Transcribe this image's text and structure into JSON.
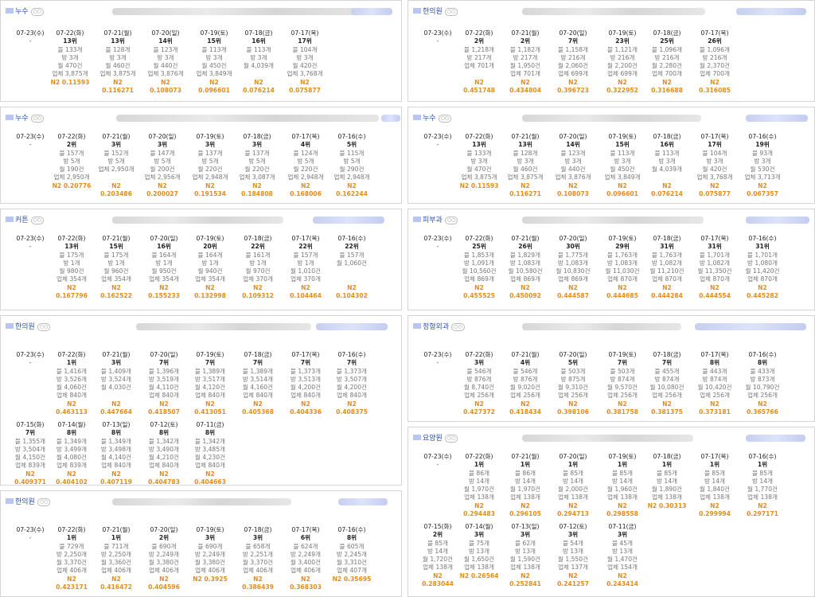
{
  "cards": [
    {
      "keyword": "누수",
      "cols": [
        {
          "date": "07-23(수)",
          "rank": "-"
        },
        {
          "date": "07-22(화)",
          "rank": "13위",
          "blog": "블 133개",
          "bang": "방 3개",
          "month": "월 470건",
          "biz": "업체 3,875개",
          "n2": "N2 0.11593"
        },
        {
          "date": "07-21(월)",
          "rank": "13위",
          "blog": "블 128개",
          "bang": "방 3개",
          "month": "월 460건",
          "biz": "업체 3,875개",
          "n2": "N2 0.116271"
        },
        {
          "date": "07-20(일)",
          "rank": "14위",
          "blog": "블 123개",
          "bang": "방 3개",
          "month": "월 440건",
          "biz": "업체 3,876개",
          "n2": "N2 0.108073"
        },
        {
          "date": "07-19(토)",
          "rank": "15위",
          "blog": "블 113개",
          "bang": "방 3개",
          "month": "월 450건",
          "biz": "업체 3,849개",
          "n2": "N2 0.096601"
        },
        {
          "date": "07-18(금)",
          "rank": "16위",
          "blog": "블 113개",
          "bang": "방 3개",
          "month": "월 4,039개",
          "biz": "",
          "n2": "N2 0.076214"
        },
        {
          "date": "07-17(목)",
          "rank": "17위",
          "blog": "블 104개",
          "bang": "방 3개",
          "month": "월 420건",
          "biz": "업체 3,768개",
          "n2": "N2 0.075877"
        }
      ]
    },
    {
      "keyword": "한의원",
      "cols": [
        {
          "date": "07-23(수)",
          "rank": "-"
        },
        {
          "date": "07-22(화)",
          "rank": "2위",
          "blog": "블 1,218개",
          "bang": "방 217개",
          "month": "업체 701개",
          "biz": "",
          "n2": "N2 0.451748"
        },
        {
          "date": "07-21(월)",
          "rank": "2위",
          "blog": "블 1,182개",
          "bang": "방 217개",
          "month": "월 1,950건",
          "biz": "업체 701개",
          "n2": "N2 0.434804"
        },
        {
          "date": "07-20(일)",
          "rank": "7위",
          "blog": "블 1,158개",
          "bang": "방 216개",
          "month": "월 2,060건",
          "biz": "업체 699개",
          "n2": "N2 0.396723"
        },
        {
          "date": "07-19(토)",
          "rank": "23위",
          "blog": "블 1,121개",
          "bang": "방 216개",
          "month": "월 2,200건",
          "biz": "업체 699개",
          "n2": "N2 0.322952"
        },
        {
          "date": "07-18(금)",
          "rank": "25위",
          "blog": "블 1,096개",
          "bang": "방 216개",
          "month": "월 2,280건",
          "biz": "업체 700개",
          "n2": "N2 0.316688"
        },
        {
          "date": "07-17(목)",
          "rank": "26위",
          "blog": "블 1,096개",
          "bang": "방 216개",
          "month": "월 2,370건",
          "biz": "업체 700개",
          "n2": "N2 0.316085"
        }
      ]
    },
    {
      "keyword": "누수",
      "cols": [
        {
          "date": "07-23(수)",
          "rank": "-"
        },
        {
          "date": "07-22(화)",
          "rank": "2위",
          "blog": "블 157개",
          "bang": "방 5개",
          "month": "월 190건",
          "biz": "업체 2,950개",
          "n2": "N2 0.20776"
        },
        {
          "date": "07-21(월)",
          "rank": "3위",
          "blog": "블 152개",
          "bang": "방 5개",
          "month": "업체 2,950개",
          "biz": "",
          "n2": "N2 0.203486"
        },
        {
          "date": "07-20(일)",
          "rank": "3위",
          "blog": "블 147개",
          "bang": "방 5개",
          "month": "월 200건",
          "biz": "업체 2,956개",
          "n2": "N2 0.200027"
        },
        {
          "date": "07-19(토)",
          "rank": "3위",
          "blog": "블 137개",
          "bang": "방 5개",
          "month": "월 220건",
          "biz": "업체 2,948개",
          "n2": "N2 0.191534"
        },
        {
          "date": "07-18(금)",
          "rank": "3위",
          "blog": "블 137개",
          "bang": "방 5개",
          "month": "월 220건",
          "biz": "업체 3,087개",
          "n2": "N2 0.184808"
        },
        {
          "date": "07-17(목)",
          "rank": "4위",
          "blog": "블 124개",
          "bang": "방 5개",
          "month": "월 220건",
          "biz": "업체 2,948개",
          "n2": "N2 0.168006"
        },
        {
          "date": "07-16(수)",
          "rank": "5위",
          "blog": "블 115개",
          "bang": "방 5개",
          "month": "월 290건",
          "biz": "업체 2,948개",
          "n2": "N2 0.162244"
        }
      ]
    },
    {
      "keyword": "누수",
      "cols": [
        {
          "date": "07-23(수)",
          "rank": "-"
        },
        {
          "date": "07-22(화)",
          "rank": "13위",
          "blog": "블 133개",
          "bang": "방 3개",
          "month": "월 470건",
          "biz": "업체 3,875개",
          "n2": "N2 0.11593"
        },
        {
          "date": "07-21(월)",
          "rank": "13위",
          "blog": "블 128개",
          "bang": "방 3개",
          "month": "월 460건",
          "biz": "업체 3,875개",
          "n2": "N2 0.116271"
        },
        {
          "date": "07-20(일)",
          "rank": "14위",
          "blog": "블 123개",
          "bang": "방 3개",
          "month": "월 440건",
          "biz": "업체 3,876개",
          "n2": "N2 0.108073"
        },
        {
          "date": "07-19(토)",
          "rank": "15위",
          "blog": "블 113개",
          "bang": "방 3개",
          "month": "월 450건",
          "biz": "업체 3,849개",
          "n2": "N2 0.096601"
        },
        {
          "date": "07-18(금)",
          "rank": "16위",
          "blog": "블 113개",
          "bang": "방 3개",
          "month": "월 4,039개",
          "biz": "",
          "n2": "N2 0.076214"
        },
        {
          "date": "07-17(목)",
          "rank": "17위",
          "blog": "블 104개",
          "bang": "방 3개",
          "month": "월 420건",
          "biz": "업체 3,768개",
          "n2": "N2 0.075877"
        },
        {
          "date": "07-16(수)",
          "rank": "19위",
          "blog": "블 93개",
          "bang": "방 3개",
          "month": "월 530건",
          "biz": "업체 3,713개",
          "n2": "N2 0.067357"
        }
      ]
    },
    {
      "keyword": "커튼",
      "cols": [
        {
          "date": "07-23(수)",
          "rank": "-"
        },
        {
          "date": "07-22(화)",
          "rank": "13위",
          "blog": "블 175개",
          "bang": "방 1개",
          "month": "월 980건",
          "biz": "업체 354개",
          "n2": "N2 0.167796"
        },
        {
          "date": "07-21(월)",
          "rank": "15위",
          "blog": "블 175개",
          "bang": "방 1개",
          "month": "월 960건",
          "biz": "업체 354개",
          "n2": "N2 0.162522"
        },
        {
          "date": "07-20(일)",
          "rank": "16위",
          "blog": "블 164개",
          "bang": "방 1개",
          "month": "월 950건",
          "biz": "업체 354개",
          "n2": "N2 0.155233"
        },
        {
          "date": "07-19(토)",
          "rank": "20위",
          "blog": "블 164개",
          "bang": "방 1개",
          "month": "월 940건",
          "biz": "업체 354개",
          "n2": "N2 0.132998"
        },
        {
          "date": "07-18(금)",
          "rank": "22위",
          "blog": "블 161개",
          "bang": "방 1개",
          "month": "월 970건",
          "biz": "업체 370개",
          "n2": "N2 0.109312"
        },
        {
          "date": "07-17(목)",
          "rank": "22위",
          "blog": "블 157개",
          "bang": "방 1개",
          "month": "월 1,010건",
          "biz": "업체 370개",
          "n2": "N2 0.104464"
        },
        {
          "date": "07-16(수)",
          "rank": "22위",
          "blog": "블 157개",
          "bang": "월 1,060건",
          "month": "",
          "biz": "",
          "n2": "N2 0.104302"
        }
      ]
    },
    {
      "keyword": "피부과",
      "cols": [
        {
          "date": "07-23(수)",
          "rank": "-"
        },
        {
          "date": "07-22(화)",
          "rank": "25위",
          "blog": "블 1,853개",
          "bang": "방 1,091개",
          "month": "월 10,560건",
          "biz": "업체 869개",
          "n2": "N2 0.455525"
        },
        {
          "date": "07-21(월)",
          "rank": "26위",
          "blog": "블 1,829개",
          "bang": "방 1,083개",
          "month": "월 10,580건",
          "biz": "업체 869개",
          "n2": "N2 0.450092"
        },
        {
          "date": "07-20(일)",
          "rank": "30위",
          "blog": "블 1,775개",
          "bang": "방 1,083개",
          "month": "월 10,830건",
          "biz": "업체 869개",
          "n2": "N2 0.444587"
        },
        {
          "date": "07-19(토)",
          "rank": "29위",
          "blog": "블 1,763개",
          "bang": "방 1,083개",
          "month": "월 11,030건",
          "biz": "업체 870개",
          "n2": "N2 0.444685"
        },
        {
          "date": "07-18(금)",
          "rank": "31위",
          "blog": "블 1,763개",
          "bang": "방 1,082개",
          "month": "월 11,210건",
          "biz": "업체 870개",
          "n2": "N2 0.444284"
        },
        {
          "date": "07-17(목)",
          "rank": "31위",
          "blog": "블 1,701개",
          "bang": "방 1,082개",
          "month": "월 11,350건",
          "biz": "업체 870개",
          "n2": "N2 0.444554"
        },
        {
          "date": "07-16(수)",
          "rank": "31위",
          "blog": "블 1,701개",
          "bang": "방 1,080개",
          "month": "월 11,420건",
          "biz": "업체 870개",
          "n2": "N2 0.445282"
        }
      ]
    },
    {
      "keyword": "한의원",
      "cols": [
        {
          "date": "07-23(수)",
          "rank": "-"
        },
        {
          "date": "07-22(화)",
          "rank": "1위",
          "blog": "블 1,416개",
          "bang": "방 3,526개",
          "month": "월 4,060건",
          "biz": "업체 840개",
          "n2": "N2 0.463113"
        },
        {
          "date": "07-21(월)",
          "rank": "3위",
          "blog": "블 1,409개",
          "bang": "방 3,524개",
          "month": "월 4,030건",
          "biz": "",
          "n2": "N2 0.447664"
        },
        {
          "date": "07-20(일)",
          "rank": "7위",
          "blog": "블 1,396개",
          "bang": "방 3,519개",
          "month": "월 4,110건",
          "biz": "업체 840개",
          "n2": "N2 0.418507"
        },
        {
          "date": "07-19(토)",
          "rank": "7위",
          "blog": "블 1,389개",
          "bang": "방 3,517개",
          "month": "월 4,120건",
          "biz": "업체 840개",
          "n2": "N2 0.413051"
        },
        {
          "date": "07-18(금)",
          "rank": "7위",
          "blog": "블 1,389개",
          "bang": "방 3,514개",
          "month": "월 4,160건",
          "biz": "업체 840개",
          "n2": "N2 0.405368"
        },
        {
          "date": "07-17(목)",
          "rank": "7위",
          "blog": "블 1,373개",
          "bang": "방 3,513개",
          "month": "월 4,200건",
          "biz": "업체 840개",
          "n2": "N2 0.404336"
        },
        {
          "date": "07-16(수)",
          "rank": "7위",
          "blog": "블 1,373개",
          "bang": "방 3,507개",
          "month": "월 4,200건",
          "biz": "업체 840개",
          "n2": "N2 0.408375"
        },
        {
          "date": "07-15(화)",
          "rank": "7위",
          "blog": "블 1,355개",
          "bang": "방 3,504개",
          "month": "월 4,150건",
          "biz": "업체 839개",
          "n2": "N2 0.409371"
        },
        {
          "date": "07-14(월)",
          "rank": "8위",
          "blog": "블 1,349개",
          "bang": "방 3,499개",
          "month": "월 4,080건",
          "biz": "업체 839개",
          "n2": "N2 0.404102"
        },
        {
          "date": "07-13(일)",
          "rank": "8위",
          "blog": "블 1,349개",
          "bang": "방 3,498개",
          "month": "월 4,140건",
          "biz": "업체 840개",
          "n2": "N2 0.407119"
        },
        {
          "date": "07-12(토)",
          "rank": "8위",
          "blog": "블 1,342개",
          "bang": "방 3,490개",
          "month": "월 4,210건",
          "biz": "업체 840개",
          "n2": "N2 0.404783"
        },
        {
          "date": "07-11(금)",
          "rank": "8위",
          "blog": "블 1,342개",
          "bang": "방 3,485개",
          "month": "월 4,230건",
          "biz": "업체 840개",
          "n2": "N2 0.404663"
        }
      ]
    },
    {
      "keyword": "정형외과",
      "cols": [
        {
          "date": "07-23(수)",
          "rank": "-"
        },
        {
          "date": "07-22(화)",
          "rank": "3위",
          "blog": "블 546개",
          "bang": "방 876개",
          "month": "월 8,740건",
          "biz": "업체 256개",
          "n2": "N2 0.427372"
        },
        {
          "date": "07-21(월)",
          "rank": "4위",
          "blog": "블 546개",
          "bang": "방 876개",
          "month": "월 9,020건",
          "biz": "업체 256개",
          "n2": "N2 0.418434"
        },
        {
          "date": "07-20(일)",
          "rank": "5위",
          "blog": "블 503개",
          "bang": "방 875개",
          "month": "월 9,310건",
          "biz": "업체 256개",
          "n2": "N2 0.398106"
        },
        {
          "date": "07-19(토)",
          "rank": "7위",
          "blog": "블 503개",
          "bang": "방 874개",
          "month": "월 9,570건",
          "biz": "업체 256개",
          "n2": "N2 0.381758"
        },
        {
          "date": "07-18(금)",
          "rank": "7위",
          "blog": "블 455개",
          "bang": "방 874개",
          "month": "월 10,080건",
          "biz": "업체 256개",
          "n2": "N2 0.381375"
        },
        {
          "date": "07-17(목)",
          "rank": "8위",
          "blog": "블 443개",
          "bang": "방 874개",
          "month": "월 10,420건",
          "biz": "업체 256개",
          "n2": "N2 0.373181"
        },
        {
          "date": "07-16(수)",
          "rank": "8위",
          "blog": "블 433개",
          "bang": "방 873개",
          "month": "월 10,790건",
          "biz": "업체 256개",
          "n2": "N2 0.365766"
        }
      ]
    },
    {
      "keyword": "요양원",
      "cols": [
        {
          "date": "07-23(수)",
          "rank": "-"
        },
        {
          "date": "07-22(화)",
          "rank": "1위",
          "blog": "블 86개",
          "bang": "방 14개",
          "month": "월 1,970건",
          "biz": "업체 138개",
          "n2": "N2 0.294483"
        },
        {
          "date": "07-21(월)",
          "rank": "1위",
          "blog": "블 86개",
          "bang": "방 14개",
          "month": "월 1,970건",
          "biz": "업체 138개",
          "n2": "N2 0.296105"
        },
        {
          "date": "07-20(일)",
          "rank": "1위",
          "blog": "블 85개",
          "bang": "방 14개",
          "month": "월 2,000건",
          "biz": "업체 138개",
          "n2": "N2 0.294713"
        },
        {
          "date": "07-19(토)",
          "rank": "1위",
          "blog": "블 85개",
          "bang": "방 14개",
          "month": "월 1,960건",
          "biz": "업체 138개",
          "n2": "N2 0.298558"
        },
        {
          "date": "07-18(금)",
          "rank": "1위",
          "blog": "블 85개",
          "bang": "방 14개",
          "month": "월 1,890건",
          "biz": "업체 138개",
          "n2": "N2 0.30313"
        },
        {
          "date": "07-17(목)",
          "rank": "1위",
          "blog": "블 85개",
          "bang": "방 14개",
          "month": "월 1,840건",
          "biz": "업체 138개",
          "n2": "N2 0.299994"
        },
        {
          "date": "07-16(수)",
          "rank": "1위",
          "blog": "블 85개",
          "bang": "방 14개",
          "month": "월 1,770건",
          "biz": "업체 138개",
          "n2": "N2 0.297171"
        },
        {
          "date": "07-15(화)",
          "rank": "2위",
          "blog": "블 85개",
          "bang": "방 14개",
          "month": "월 1,720건",
          "biz": "업체 138개",
          "n2": "N2 0.283044"
        },
        {
          "date": "07-14(월)",
          "rank": "3위",
          "blog": "블 75개",
          "bang": "방 13개",
          "month": "월 1,650건",
          "biz": "업체 138개",
          "n2": "N2 0.26564"
        },
        {
          "date": "07-13(일)",
          "rank": "3위",
          "blog": "블 62개",
          "bang": "방 13개",
          "month": "월 1,590건",
          "biz": "업체 138개",
          "n2": "N2 0.252841"
        },
        {
          "date": "07-12(토)",
          "rank": "3위",
          "blog": "블 54개",
          "bang": "방 13개",
          "month": "월 1,550건",
          "biz": "업체 137개",
          "n2": "N2 0.241257"
        },
        {
          "date": "07-11(금)",
          "rank": "3위",
          "blog": "블 45개",
          "bang": "방 13개",
          "month": "월 1,470건",
          "biz": "업체 154개",
          "n2": "N2 0.243414"
        }
      ]
    },
    {
      "keyword": "한의원",
      "cols": [
        {
          "date": "07-23(수)",
          "rank": "-"
        },
        {
          "date": "07-22(화)",
          "rank": "1위",
          "blog": "블 729개",
          "bang": "방 2,250개",
          "month": "월 3,370건",
          "biz": "업체 406개",
          "n2": "N2 0.423171"
        },
        {
          "date": "07-21(월)",
          "rank": "1위",
          "blog": "블 711개",
          "bang": "방 2,250개",
          "month": "월 3,360건",
          "biz": "업체 406개",
          "n2": "N2 0.416472"
        },
        {
          "date": "07-20(일)",
          "rank": "2위",
          "blog": "블 690개",
          "bang": "방 2,249개",
          "month": "월 3,380건",
          "biz": "업체 406개",
          "n2": "N2 0.404596"
        },
        {
          "date": "07-19(토)",
          "rank": "3위",
          "blog": "블 690개",
          "bang": "방 2,249개",
          "month": "월 3,380건",
          "biz": "업체 406개",
          "n2": "N2 0.3925"
        },
        {
          "date": "07-18(금)",
          "rank": "3위",
          "blog": "블 658개",
          "bang": "방 2,251개",
          "month": "월 3,370건",
          "biz": "업체 406개",
          "n2": "N2 0.386439"
        },
        {
          "date": "07-17(목)",
          "rank": "6위",
          "blog": "블 624개",
          "bang": "방 2,249개",
          "month": "월 3,400건",
          "biz": "업체 406개",
          "n2": "N2 0.368303"
        },
        {
          "date": "07-16(수)",
          "rank": "8위",
          "blog": "블 605개",
          "bang": "방 2,245개",
          "month": "월 3,310건",
          "biz": "업체 407개",
          "n2": "N2 0.35695"
        }
      ]
    }
  ]
}
